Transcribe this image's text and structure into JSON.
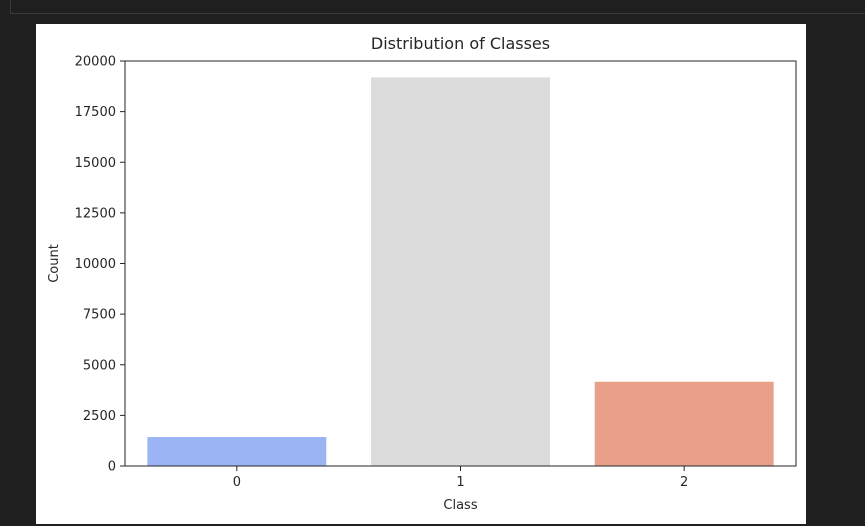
{
  "chart_data": {
    "type": "bar",
    "title": "Distribution of Classes",
    "xlabel": "Class",
    "ylabel": "Count",
    "categories": [
      "0",
      "1",
      "2"
    ],
    "values": [
      1430,
      19190,
      4160
    ],
    "colors": [
      "#9bb4f4",
      "#dcdcdc",
      "#e8a088"
    ],
    "ylim": [
      0,
      20000
    ],
    "yticks": [
      0,
      2500,
      5000,
      7500,
      10000,
      12500,
      15000,
      17500,
      20000
    ],
    "grid": false,
    "legend": "none"
  },
  "ui": {
    "caret": "⌃"
  }
}
